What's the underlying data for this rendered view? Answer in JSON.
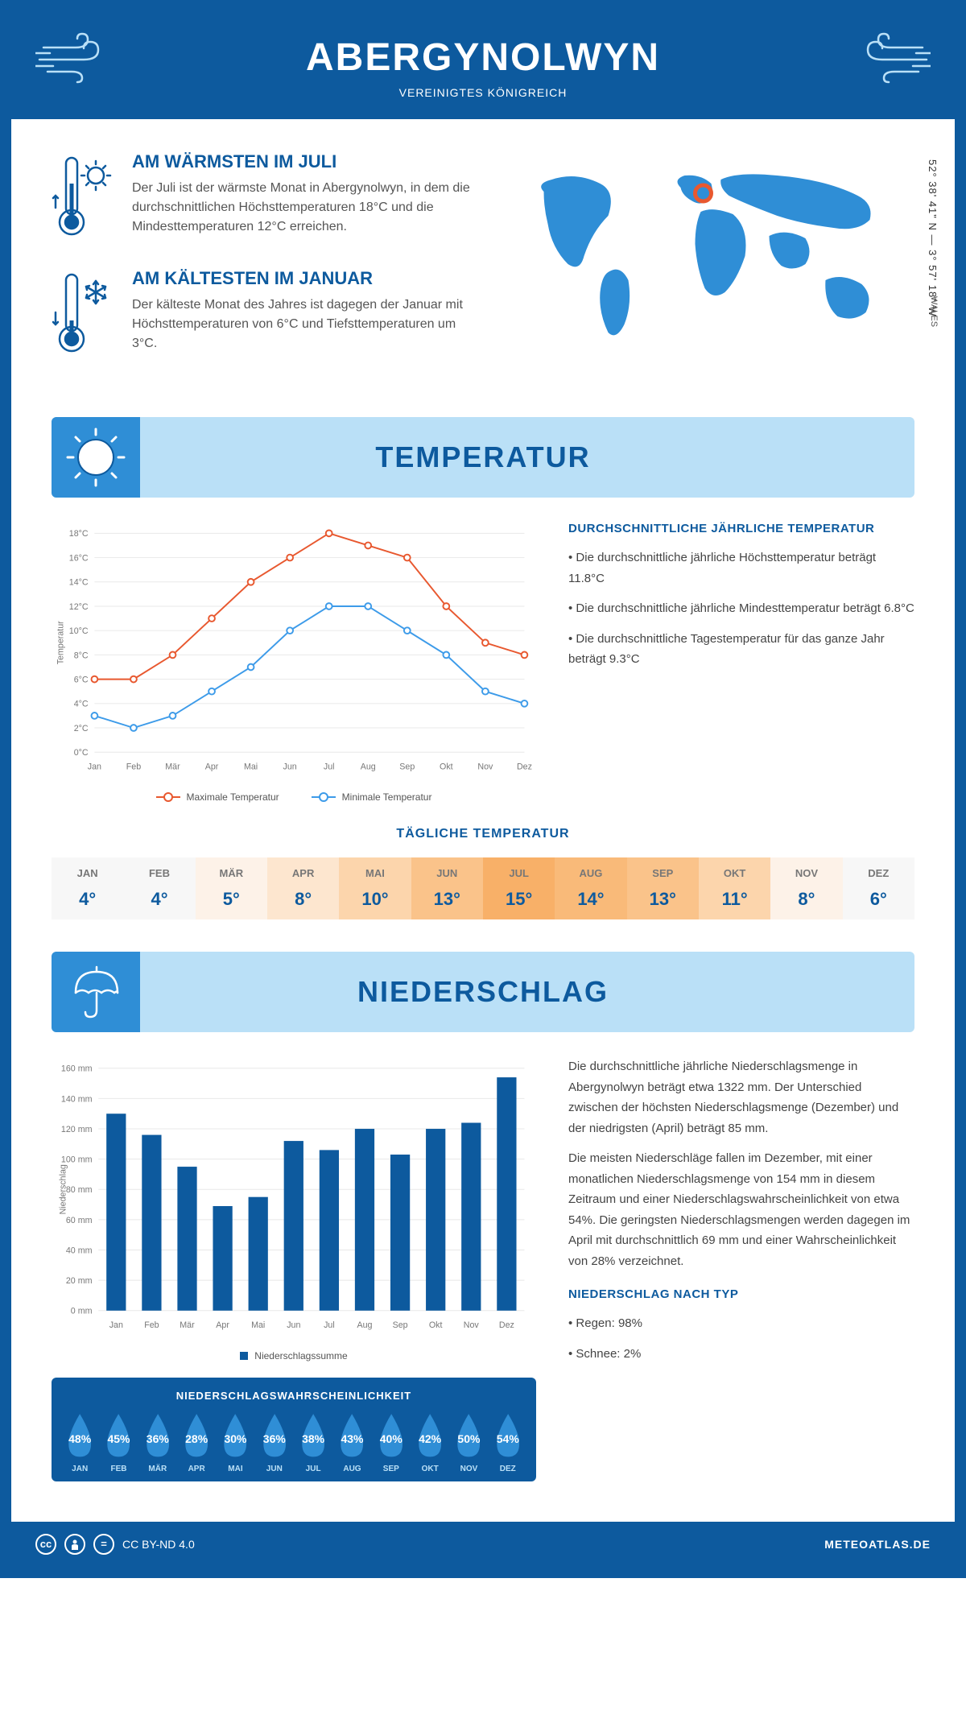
{
  "header": {
    "title": "ABERGYNOLWYN",
    "subtitle": "VEREINIGTES KÖNIGREICH"
  },
  "intro": {
    "warm": {
      "title": "AM WÄRMSTEN IM JULI",
      "text": "Der Juli ist der wärmste Monat in Abergynolwyn, in dem die durchschnittlichen Höchsttemperaturen 18°C und die Mindesttemperaturen 12°C erreichen."
    },
    "cold": {
      "title": "AM KÄLTESTEN IM JANUAR",
      "text": "Der kälteste Monat des Jahres ist dagegen der Januar mit Höchsttemperaturen von 6°C und Tiefsttemperaturen um 3°C."
    },
    "coords": "52° 38' 41\" N — 3° 57' 18\" W",
    "region": "WALES"
  },
  "temperature": {
    "section_title": "TEMPERATUR",
    "info_title": "DURCHSCHNITTLICHE JÄHRLICHE TEMPERATUR",
    "bullets": [
      "• Die durchschnittliche jährliche Höchsttemperatur beträgt 11.8°C",
      "• Die durchschnittliche jährliche Mindesttemperatur beträgt 6.8°C",
      "• Die durchschnittliche Tagestemperatur für das ganze Jahr beträgt 9.3°C"
    ],
    "chart": {
      "type": "line",
      "months": [
        "Jan",
        "Feb",
        "Mär",
        "Apr",
        "Mai",
        "Jun",
        "Jul",
        "Aug",
        "Sep",
        "Okt",
        "Nov",
        "Dez"
      ],
      "max_values": [
        6,
        6,
        8,
        11,
        14,
        16,
        18,
        17,
        16,
        12,
        9,
        8
      ],
      "min_values": [
        3,
        2,
        3,
        5,
        7,
        10,
        12,
        12,
        10,
        8,
        5,
        4
      ],
      "max_color": "#e8582f",
      "min_color": "#3d9be9",
      "y_axis_label": "Temperatur",
      "ylim": [
        0,
        18
      ],
      "ytick_step": 2,
      "grid_color": "#e8e8e8",
      "legend_max": "Maximale Temperatur",
      "legend_min": "Minimale Temperatur",
      "tick_fontsize": 11,
      "line_width": 2,
      "marker_radius": 4
    },
    "daily_title": "TÄGLICHE TEMPERATUR",
    "daily": {
      "months": [
        "JAN",
        "FEB",
        "MÄR",
        "APR",
        "MAI",
        "JUN",
        "JUL",
        "AUG",
        "SEP",
        "OKT",
        "NOV",
        "DEZ"
      ],
      "values": [
        "4°",
        "4°",
        "5°",
        "8°",
        "10°",
        "13°",
        "15°",
        "14°",
        "13°",
        "11°",
        "8°",
        "6°"
      ],
      "colors": [
        "#f7f7f7",
        "#f7f7f7",
        "#fdf2e8",
        "#fde6cf",
        "#fcd5ac",
        "#fac38a",
        "#f8b068",
        "#f9ba79",
        "#fac38a",
        "#fcd5ac",
        "#fdf2e8",
        "#f7f7f7"
      ]
    }
  },
  "precipitation": {
    "section_title": "NIEDERSCHLAG",
    "chart": {
      "type": "bar",
      "months": [
        "Jan",
        "Feb",
        "Mär",
        "Apr",
        "Mai",
        "Jun",
        "Jul",
        "Aug",
        "Sep",
        "Okt",
        "Nov",
        "Dez"
      ],
      "values": [
        130,
        116,
        95,
        69,
        75,
        112,
        106,
        120,
        103,
        120,
        124,
        154
      ],
      "bar_color": "#0d5a9e",
      "y_axis_label": "Niederschlag",
      "ylim": [
        0,
        160
      ],
      "ytick_step": 20,
      "legend_label": "Niederschlagssumme",
      "grid_color": "#e8e8e8",
      "bar_width_ratio": 0.55,
      "tick_fontsize": 11
    },
    "text1": "Die durchschnittliche jährliche Niederschlagsmenge in Abergynolwyn beträgt etwa 1322 mm. Der Unterschied zwischen der höchsten Niederschlagsmenge (Dezember) und der niedrigsten (April) beträgt 85 mm.",
    "text2": "Die meisten Niederschläge fallen im Dezember, mit einer monatlichen Niederschlagsmenge von 154 mm in diesem Zeitraum und einer Niederschlagswahrscheinlichkeit von etwa 54%. Die geringsten Niederschlagsmengen werden dagegen im April mit durchschnittlich 69 mm und einer Wahrscheinlichkeit von 28% verzeichnet.",
    "type_title": "NIEDERSCHLAG NACH TYP",
    "type_bullets": [
      "• Regen: 98%",
      "• Schnee: 2%"
    ],
    "probability": {
      "title": "NIEDERSCHLAGSWAHRSCHEINLICHKEIT",
      "months": [
        "JAN",
        "FEB",
        "MÄR",
        "APR",
        "MAI",
        "JUN",
        "JUL",
        "AUG",
        "SEP",
        "OKT",
        "NOV",
        "DEZ"
      ],
      "values": [
        "48%",
        "45%",
        "36%",
        "28%",
        "30%",
        "36%",
        "38%",
        "43%",
        "40%",
        "42%",
        "50%",
        "54%"
      ],
      "drop_color": "#2f8ed6"
    }
  },
  "footer": {
    "license": "CC BY-ND 4.0",
    "site": "METEOATLAS.DE"
  },
  "colors": {
    "primary": "#0d5a9e",
    "light_blue": "#bae0f7",
    "mid_blue": "#2f8ed6"
  }
}
